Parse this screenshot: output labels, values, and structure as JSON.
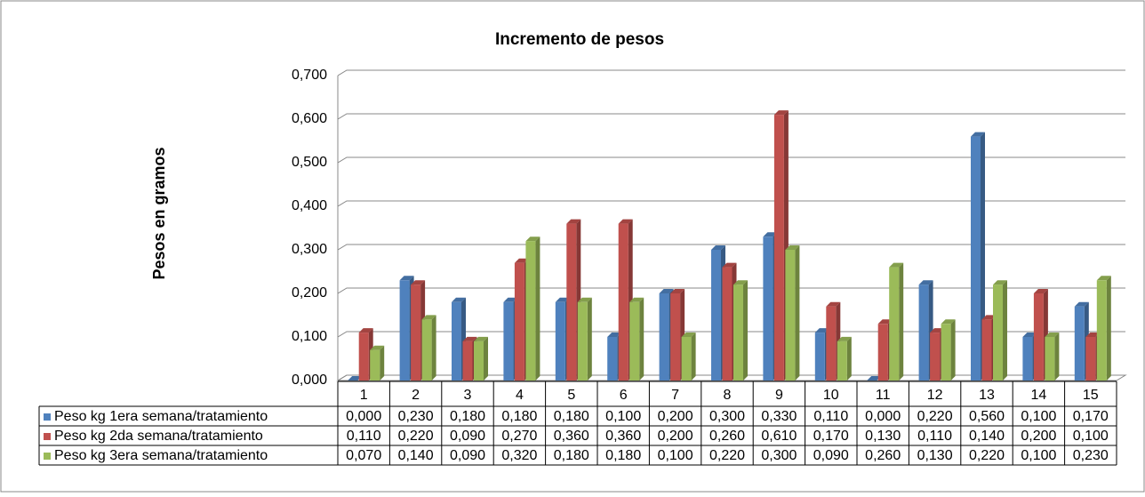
{
  "chart_data": {
    "type": "bar3d",
    "title": "Incremento de pesos",
    "y_label": "Pesos en gramos",
    "categories": [
      "1",
      "2",
      "3",
      "4",
      "5",
      "6",
      "7",
      "8",
      "9",
      "10",
      "11",
      "12",
      "13",
      "14",
      "15"
    ],
    "series": [
      {
        "name": "Peso kg 1era semana/tratamiento",
        "color": "#4f81bd",
        "values": [
          0,
          0.23,
          0.18,
          0.18,
          0.18,
          0.1,
          0.2,
          0.3,
          0.33,
          0.11,
          0,
          0.22,
          0.56,
          0.1,
          0.17
        ],
        "value_labels": [
          "0,000",
          "0,230",
          "0,180",
          "0,180",
          "0,180",
          "0,100",
          "0,200",
          "0,300",
          "0,330",
          "0,110",
          "0,000",
          "0,220",
          "0,560",
          "0,100",
          "0,170"
        ]
      },
      {
        "name": "Peso kg 2da semana/tratamiento",
        "color": "#c0504d",
        "values": [
          0.11,
          0.22,
          0.09,
          0.27,
          0.36,
          0.36,
          0.2,
          0.26,
          0.61,
          0.17,
          0.13,
          0.11,
          0.14,
          0.2,
          0.1
        ],
        "value_labels": [
          "0,110",
          "0,220",
          "0,090",
          "0,270",
          "0,360",
          "0,360",
          "0,200",
          "0,260",
          "0,610",
          "0,170",
          "0,130",
          "0,110",
          "0,140",
          "0,200",
          "0,100"
        ]
      },
      {
        "name": "Peso kg 3era semana/tratamiento",
        "color": "#9bbb59",
        "values": [
          0.07,
          0.14,
          0.09,
          0.32,
          0.18,
          0.18,
          0.1,
          0.22,
          0.3,
          0.09,
          0.26,
          0.13,
          0.22,
          0.1,
          0.23
        ],
        "value_labels": [
          "0,070",
          "0,140",
          "0,090",
          "0,320",
          "0,180",
          "0,180",
          "0,100",
          "0,220",
          "0,300",
          "0,090",
          "0,260",
          "0,130",
          "0,220",
          "0,100",
          "0,230"
        ]
      }
    ],
    "ylim": [
      0,
      0.7
    ],
    "yticks": [
      {
        "value": 0,
        "label": "0,000"
      },
      {
        "value": 0.1,
        "label": "0,100"
      },
      {
        "value": 0.2,
        "label": "0,200"
      },
      {
        "value": 0.3,
        "label": "0,300"
      },
      {
        "value": 0.4,
        "label": "0,400"
      },
      {
        "value": 0.5,
        "label": "0,500"
      },
      {
        "value": 0.6,
        "label": "0,600"
      },
      {
        "value": 0.7,
        "label": "0,700"
      }
    ],
    "grid": true
  }
}
